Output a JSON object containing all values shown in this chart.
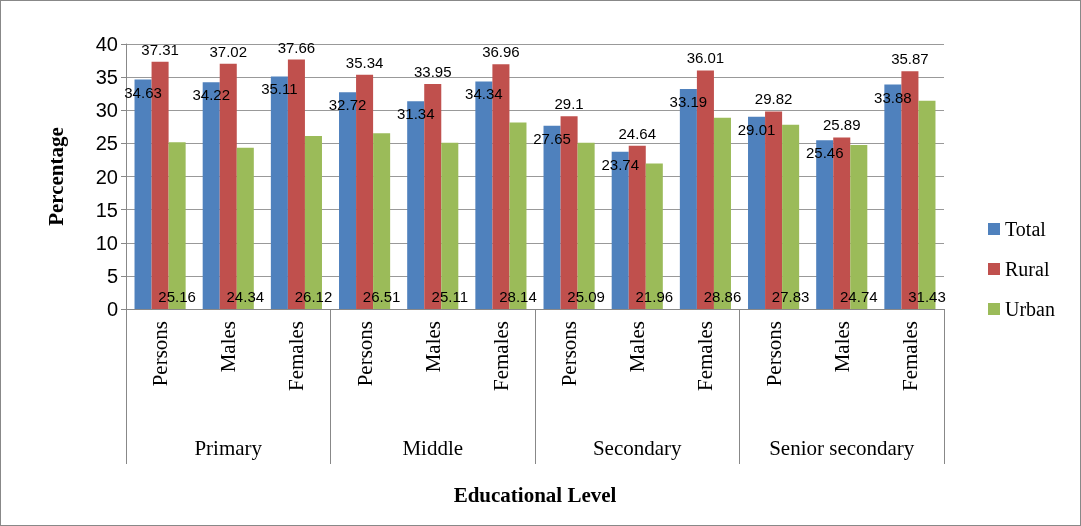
{
  "chart_data": {
    "type": "bar",
    "xlabel": "Educational Level",
    "ylabel": "Percentage",
    "categories": [
      "Persons",
      "Males",
      "Females",
      "Persons",
      "Males",
      "Females",
      "Persons",
      "Males",
      "Females",
      "Persons",
      "Males",
      "Females"
    ],
    "annotations": [
      "Primary",
      "Middle",
      "Secondary",
      "Senior secondary"
    ],
    "series": [
      {
        "name": "Total",
        "color": "#4f81bd",
        "values": [
          34.63,
          34.22,
          35.11,
          32.72,
          31.34,
          34.34,
          27.65,
          23.74,
          33.19,
          29.01,
          25.46,
          33.88
        ]
      },
      {
        "name": "Rural",
        "color": "#c0504d",
        "values": [
          37.31,
          37.02,
          37.66,
          35.34,
          33.95,
          36.96,
          29.1,
          24.64,
          36.01,
          29.82,
          25.89,
          35.87
        ]
      },
      {
        "name": "Urban",
        "color": "#9bbb59",
        "values": [
          25.16,
          24.34,
          26.12,
          26.51,
          25.11,
          28.14,
          25.09,
          21.96,
          28.86,
          27.83,
          24.74,
          31.43
        ]
      }
    ],
    "ylim": [
      0,
      40
    ],
    "yticks": [
      0,
      5,
      10,
      15,
      20,
      25,
      30,
      35,
      40
    ],
    "grid": "y",
    "legend": "right",
    "data_labels": true
  }
}
